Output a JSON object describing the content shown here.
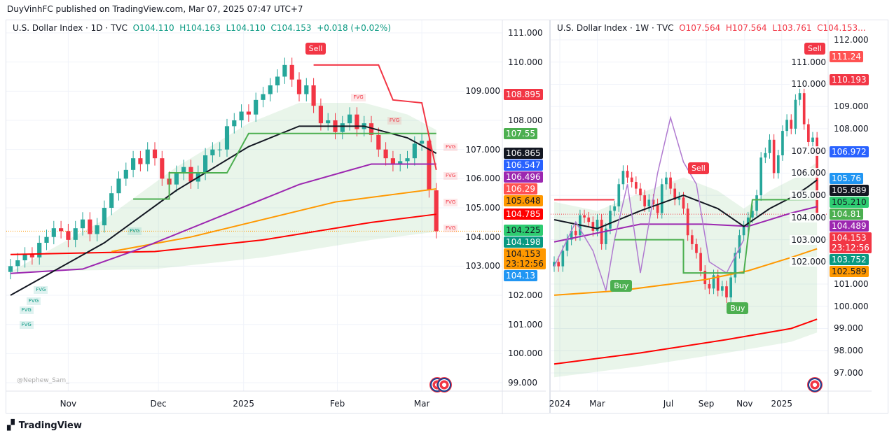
{
  "published": "DuyVinhFC published on TradingView.com, Mar 07, 2025 07:47 UTC+7",
  "footer": "TradingView",
  "watermark": "@Nephew_Sam_",
  "chart_data": [
    {
      "type": "line",
      "title": "U.S. Dollar Index · 1D · TVC",
      "ohlc": {
        "o": "O104.110",
        "h": "H104.163",
        "l": "L104.110",
        "c": "C104.153",
        "chg": "+0.018 (+0.02%)"
      },
      "ylim": [
        98.6,
        111.3
      ],
      "yticks": [
        "111.000",
        "110.000",
        "109.000",
        "108.000",
        "107.000",
        "106.000",
        "105.000",
        "104.000",
        "103.000",
        "102.000",
        "101.000",
        "100.000",
        "99.000"
      ],
      "yvals": [
        111,
        110,
        109,
        108,
        107,
        106,
        105,
        104,
        103,
        102,
        101,
        100,
        99
      ],
      "xticks": [
        {
          "label": "Nov",
          "i": 8
        },
        {
          "label": "Dec",
          "i": 20.5
        },
        {
          "label": "2025",
          "i": 32.3
        },
        {
          "label": "Feb",
          "i": 45.3
        },
        {
          "label": "Mar",
          "i": 57
        }
      ],
      "nbars": 60,
      "closes": [
        103.0,
        103.2,
        103.4,
        103.3,
        103.8,
        104.0,
        104.3,
        104.2,
        103.9,
        104.3,
        104.6,
        104.1,
        104.4,
        105.0,
        105.5,
        106.0,
        106.3,
        106.7,
        106.5,
        107.0,
        106.7,
        106.0,
        105.8,
        106.2,
        106.4,
        105.9,
        106.2,
        106.8,
        107.0,
        107.0,
        107.8,
        108.0,
        108.3,
        108.2,
        108.7,
        108.9,
        109.2,
        109.5,
        109.9,
        109.4,
        108.9,
        109.2,
        108.5,
        107.9,
        108.0,
        107.6,
        107.9,
        108.2,
        107.7,
        107.9,
        107.5,
        107.0,
        106.7,
        106.5,
        106.6,
        106.7,
        107.2,
        107.3,
        105.6,
        104.2
      ],
      "series": [
        {
          "name": "red-ma",
          "color": "#ff0000",
          "points": [
            [
              0,
              103.4
            ],
            [
              20,
              103.5
            ],
            [
              35,
              103.9
            ],
            [
              50,
              104.5
            ],
            [
              59,
              104.78
            ]
          ]
        },
        {
          "name": "orange-ma",
          "color": "#ff9800",
          "points": [
            [
              14,
              103.5
            ],
            [
              25,
              104.0
            ],
            [
              35,
              104.6
            ],
            [
              45,
              105.2
            ],
            [
              59,
              105.65
            ]
          ]
        },
        {
          "name": "purple-ma",
          "color": "#9c27b0",
          "points": [
            [
              0,
              102.75
            ],
            [
              10,
              102.9
            ],
            [
              18,
              103.6
            ],
            [
              30,
              104.8
            ],
            [
              40,
              105.8
            ],
            [
              50,
              106.5
            ],
            [
              59,
              106.5
            ]
          ]
        },
        {
          "name": "black-ma",
          "color": "#131722",
          "points": [
            [
              0,
              102
            ],
            [
              13,
              103.8
            ],
            [
              23,
              105.6
            ],
            [
              33,
              107.1
            ],
            [
              40,
              107.8
            ],
            [
              49,
              107.8
            ],
            [
              55,
              107.4
            ],
            [
              59,
              106.87
            ]
          ]
        },
        {
          "name": "green-stop",
          "color": "#4caf50",
          "points": [
            [
              17,
              105.3
            ],
            [
              22,
              105.3
            ],
            [
              22,
              106.2
            ],
            [
              30,
              106.2
            ],
            [
              33,
              107.55
            ],
            [
              59,
              107.55
            ]
          ]
        },
        {
          "name": "red-stop",
          "color": "#f23645",
          "points": [
            [
              42,
              109.9
            ],
            [
              51,
              109.9
            ],
            [
              53,
              108.7
            ],
            [
              57,
              108.6
            ],
            [
              59,
              106.3
            ]
          ]
        }
      ],
      "badges": [
        {
          "v": "108.895",
          "bg": "#f23645",
          "fg": "#fff"
        },
        {
          "v": "107.55",
          "bg": "#4caf50",
          "fg": "#fff"
        },
        {
          "v": "106.865",
          "bg": "#131722",
          "fg": "#fff"
        },
        {
          "v": "106.547",
          "bg": "#2962ff",
          "fg": "#fff"
        },
        {
          "v": "106.496",
          "bg": "#9c27b0",
          "fg": "#fff"
        },
        {
          "v": "106.29",
          "bg": "#ff5252",
          "fg": "#fff"
        },
        {
          "v": "105.648",
          "bg": "#ff9800",
          "fg": "#131722"
        },
        {
          "v": "104.785",
          "bg": "#ff0000",
          "fg": "#fff"
        },
        {
          "v": "104.225",
          "bg": "#2ecc71",
          "fg": "#131722"
        },
        {
          "v": "104.198",
          "bg": "#089981",
          "fg": "#fff"
        },
        {
          "v": "104.153",
          "sub": "23:12:56",
          "bg": "#ff9800",
          "fg": "#131722"
        },
        {
          "v": "104.13",
          "bg": "#2196f3",
          "fg": "#fff"
        }
      ],
      "annotations": [
        {
          "label": "Sell",
          "i": 42,
          "v": 110.45,
          "bg": "#f23645"
        }
      ],
      "fvg_label": "FVG",
      "fvgs": [
        {
          "i": 48,
          "v": 108.8,
          "c": "red"
        },
        {
          "i": 53,
          "v": 108.0,
          "c": "red"
        },
        {
          "i": 61,
          "v": 107.1,
          "c": "red"
        },
        {
          "i": 64,
          "v": 106.1,
          "c": "red"
        },
        {
          "i": 64,
          "v": 105.2,
          "c": "red"
        },
        {
          "i": 65,
          "v": 104.3,
          "c": "red"
        },
        {
          "i": 17,
          "v": 104.2,
          "c": "green"
        },
        {
          "i": 4,
          "v": 102.2,
          "c": "green"
        },
        {
          "i": 3,
          "v": 101.8,
          "c": "green"
        },
        {
          "i": 2,
          "v": 101.5,
          "c": "green"
        },
        {
          "i": 2,
          "v": 101.0,
          "c": "green"
        }
      ]
    },
    {
      "type": "line",
      "title": "U.S. Dollar Index · 1W · TVC",
      "ohlc": {
        "o": "O107.564",
        "h": "H107.564",
        "l": "L103.761",
        "c": "C104.153..."
      },
      "ylim": [
        96.3,
        112.5
      ],
      "yticks": [
        "112.000",
        "111.000",
        "110.000",
        "109.000",
        "108.000",
        "107.000",
        "106.000",
        "105.000",
        "104.000",
        "103.000",
        "102.000",
        "101.000",
        "100.000",
        "99.000",
        "98.000",
        "97.000"
      ],
      "yvals": [
        112,
        111,
        110,
        109,
        108,
        107,
        106,
        105,
        104,
        103,
        102,
        101,
        100,
        99,
        98,
        97
      ],
      "xticks": [
        {
          "label": "2024",
          "i": 1.3
        },
        {
          "label": "Mar",
          "i": 10
        },
        {
          "label": "Jul",
          "i": 26.5
        },
        {
          "label": "Sep",
          "i": 35.3
        },
        {
          "label": "Nov",
          "i": 44.2
        },
        {
          "label": "2025",
          "i": 52.8
        }
      ],
      "nbars": 62,
      "closes": [
        102.0,
        101.8,
        102.5,
        103.0,
        103.4,
        103.2,
        104.1,
        104.0,
        103.8,
        103.4,
        103.9,
        102.8,
        103.5,
        104.3,
        104.5,
        105.5,
        106.1,
        105.8,
        105.6,
        105.3,
        105.0,
        104.5,
        104.8,
        104.6,
        104.2,
        105.5,
        105.8,
        105.3,
        104.8,
        104.9,
        104.4,
        103.2,
        102.8,
        102.4,
        101.6,
        101.0,
        100.8,
        101.4,
        100.7,
        100.9,
        100.4,
        101.3,
        102.4,
        103.2,
        103.6,
        104.0,
        104.3,
        105.0,
        106.7,
        106.9,
        107.5,
        106.0,
        106.8,
        107.9,
        108.4,
        108.0,
        109.3,
        109.6,
        108.2,
        107.4,
        107.6,
        104.15
      ],
      "series": [
        {
          "name": "red-ma",
          "color": "#ff0000",
          "points": [
            [
              0,
              97.4
            ],
            [
              20,
              97.9
            ],
            [
              40,
              98.5
            ],
            [
              55,
              99.0
            ],
            [
              61,
              99.42
            ]
          ]
        },
        {
          "name": "orange-ma",
          "color": "#ff9800",
          "points": [
            [
              0,
              100.5
            ],
            [
              15,
              100.7
            ],
            [
              35,
              101.2
            ],
            [
              45,
              101.6
            ],
            [
              55,
              102.2
            ],
            [
              61,
              102.59
            ]
          ]
        },
        {
          "name": "purple-ma",
          "color": "#9c27b0",
          "points": [
            [
              0,
              102.9
            ],
            [
              20,
              103.7
            ],
            [
              35,
              103.7
            ],
            [
              45,
              103.6
            ],
            [
              55,
              104.2
            ],
            [
              61,
              104.49
            ]
          ]
        },
        {
          "name": "black-ma",
          "color": "#131722",
          "points": [
            [
              0,
              103.9
            ],
            [
              10,
              103.5
            ],
            [
              20,
              104.3
            ],
            [
              30,
              105.0
            ],
            [
              38,
              104.4
            ],
            [
              44,
              103.6
            ],
            [
              50,
              104.4
            ],
            [
              56,
              105.0
            ],
            [
              59,
              105.4
            ],
            [
              61,
              105.69
            ]
          ]
        },
        {
          "name": "oscillator",
          "color": "#b07ad0",
          "points": [
            [
              0,
              101.8
            ],
            [
              5,
              103.8
            ],
            [
              9,
              102.5
            ],
            [
              12,
              100.7
            ],
            [
              14,
              103
            ],
            [
              17,
              105.5
            ],
            [
              20,
              101.5
            ],
            [
              24,
              106
            ],
            [
              27,
              108.5
            ],
            [
              30,
              106.5
            ],
            [
              33,
              105.5
            ],
            [
              36,
              102
            ],
            [
              40,
              101.5
            ],
            [
              44,
              103
            ]
          ]
        },
        {
          "name": "green-stop",
          "color": "#4caf50",
          "points": [
            [
              14,
              103.0
            ],
            [
              30,
              103.0
            ],
            [
              30,
              101.5
            ],
            [
              44,
              101.5
            ],
            [
              46,
              104.8
            ],
            [
              61,
              104.81
            ]
          ]
        },
        {
          "name": "red-stop",
          "color": "#f23645",
          "points": [
            [
              0,
              104.8
            ],
            [
              14,
              104.8
            ]
          ]
        }
      ],
      "badges": [
        {
          "v": "111.24",
          "bg": "#ff5252",
          "fg": "#fff"
        },
        {
          "v": "110.193",
          "bg": "#f23645",
          "fg": "#fff"
        },
        {
          "v": "106.972",
          "bg": "#2962ff",
          "fg": "#fff"
        },
        {
          "v": "105.76",
          "bg": "#2196f3",
          "fg": "#fff"
        },
        {
          "v": "105.689",
          "bg": "#131722",
          "fg": "#fff"
        },
        {
          "v": "105.210",
          "bg": "#2ecc71",
          "fg": "#131722"
        },
        {
          "v": "104.81",
          "bg": "#4caf50",
          "fg": "#fff"
        },
        {
          "v": "104.489",
          "bg": "#9c27b0",
          "fg": "#fff"
        },
        {
          "v": "104.153",
          "sub": "23:12:56",
          "bg": "#f23645",
          "fg": "#fff"
        },
        {
          "v": "103.752",
          "bg": "#089981",
          "fg": "#fff"
        },
        {
          "v": "102.589",
          "bg": "#ff9800",
          "fg": "#131722"
        }
      ],
      "annotations": [
        {
          "label": "Sell",
          "i": 61,
          "v": 111.6,
          "bg": "#f23645"
        },
        {
          "label": "Sell",
          "i": 33,
          "v": 106.2,
          "bg": "#f23645"
        },
        {
          "label": "Buy",
          "i": 15,
          "v": 100.9,
          "bg": "#4caf50"
        },
        {
          "label": "Buy",
          "i": 42,
          "v": 99.9,
          "bg": "#4caf50"
        }
      ]
    }
  ]
}
